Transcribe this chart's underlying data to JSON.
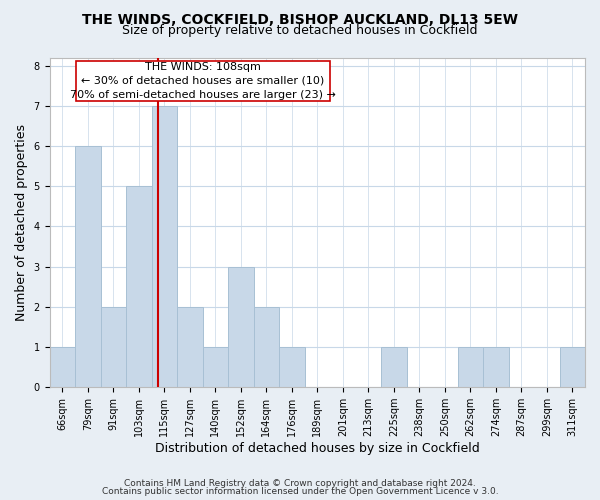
{
  "title1": "THE WINDS, COCKFIELD, BISHOP AUCKLAND, DL13 5EW",
  "title2": "Size of property relative to detached houses in Cockfield",
  "xlabel": "Distribution of detached houses by size in Cockfield",
  "ylabel": "Number of detached properties",
  "footer1": "Contains HM Land Registry data © Crown copyright and database right 2024.",
  "footer2": "Contains public sector information licensed under the Open Government Licence v 3.0.",
  "bin_labels": [
    "66sqm",
    "79sqm",
    "91sqm",
    "103sqm",
    "115sqm",
    "127sqm",
    "140sqm",
    "152sqm",
    "164sqm",
    "176sqm",
    "189sqm",
    "201sqm",
    "213sqm",
    "225sqm",
    "238sqm",
    "250sqm",
    "262sqm",
    "274sqm",
    "287sqm",
    "299sqm",
    "311sqm"
  ],
  "bar_heights": [
    1,
    6,
    2,
    5,
    7,
    2,
    1,
    3,
    2,
    1,
    0,
    0,
    0,
    1,
    0,
    0,
    1,
    1,
    0,
    0,
    1
  ],
  "bar_color": "#c8d8e8",
  "bar_edgecolor": "#a8c0d4",
  "vline_x": 3.77,
  "vline_color": "#cc0000",
  "annotation_line1": "THE WINDS: 108sqm",
  "annotation_line2": "← 30% of detached houses are smaller (10)",
  "annotation_line3": "70% of semi-detached houses are larger (23) →",
  "ylim": [
    0,
    8.2
  ],
  "yticks": [
    0,
    1,
    2,
    3,
    4,
    5,
    6,
    7,
    8
  ],
  "bg_color": "#e8eef4",
  "plot_bg_color": "#ffffff",
  "grid_color": "#c8d8e8",
  "title_fontsize": 10,
  "subtitle_fontsize": 9,
  "axis_label_fontsize": 9,
  "tick_fontsize": 7,
  "annotation_fontsize": 8,
  "footer_fontsize": 6.5
}
